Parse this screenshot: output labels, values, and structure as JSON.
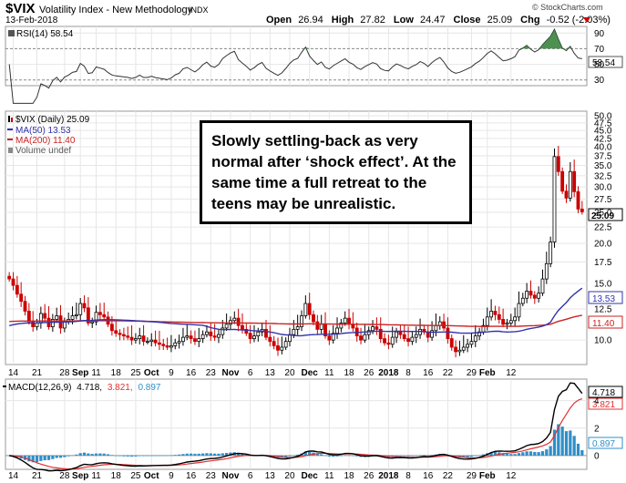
{
  "header": {
    "symbol": "$VIX",
    "name": "Volatility Index - New Methodology",
    "exchange": "INDX",
    "date": "13-Feb-2018",
    "brand": "© StockCharts.com",
    "open_label": "Open",
    "open": "26.94",
    "high_label": "High",
    "high": "27.82",
    "low_label": "Low",
    "low": "24.47",
    "close_label": "Close",
    "close": "25.09",
    "chg_label": "Chg",
    "chg": "-0.52 (-2.03%)"
  },
  "colors": {
    "up": "#000000",
    "down": "#cc0000",
    "ma50": "#3333aa",
    "ma200": "#cc2222",
    "macd": "#000000",
    "signal": "#e03030",
    "hist": "#2f8fc8",
    "rsi_fill": "#2e7d32"
  },
  "rsi_panel": {
    "legend": "RSI(14) 58.54",
    "value_box": "58.54",
    "ticks": [
      "90",
      "70",
      "50",
      "30"
    ]
  },
  "main_panel": {
    "legend_vix": "$VIX (Daily) 25.09",
    "legend_ma50": "MA(50) 13.53",
    "legend_ma200": "MA(200) 11.40",
    "legend_volume": "Volume undef",
    "ticks": [
      "50.0",
      "47.5",
      "45.0",
      "42.5",
      "40.0",
      "37.5",
      "35.0",
      "32.5",
      "30.0",
      "27.5",
      "25.0",
      "22.5",
      "20.0",
      "17.5",
      "15.0",
      "12.5",
      "10.0"
    ],
    "close_box": "25.09",
    "ma50_box": "13.53",
    "ma200_box": "11.40",
    "annotation": "Slowly settling-back as very normal after ‘shock effect’. At the same time a full retreat to the teens may be unrealistic."
  },
  "x_axis": {
    "labels": [
      "14",
      "21",
      "28",
      "Sep",
      "11",
      "18",
      "25",
      "Oct",
      "9",
      "16",
      "23",
      "Nov",
      "6",
      "13",
      "20",
      "Dec",
      "11",
      "18",
      "26",
      "2018",
      "8",
      "16",
      "22",
      "29",
      "Feb",
      "12"
    ]
  },
  "macd_panel": {
    "legend_prefix": "MACD(12,26,9)",
    "legend_macd": "4.718,",
    "legend_signal": "3.821,",
    "legend_hist": "0.897",
    "ticks": [
      "4",
      "2",
      "0"
    ],
    "macd_box": "4.718",
    "signal_box": "3.821",
    "hist_box": "0.897"
  },
  "chart_data": {
    "type": "line",
    "title": "$VIX Volatility Index - New Methodology INDX",
    "y_scale": "log",
    "ylim": [
      8.5,
      50
    ],
    "closes": [
      15.5,
      14.8,
      13.9,
      13.2,
      12.3,
      11.4,
      11.0,
      11.3,
      12.1,
      11.7,
      11.0,
      11.6,
      11.9,
      10.9,
      11.4,
      11.6,
      11.9,
      12.0,
      13.0,
      12.6,
      11.3,
      11.4,
      12.2,
      12.0,
      11.8,
      11.2,
      10.7,
      10.5,
      10.4,
      10.3,
      10.2,
      10.0,
      10.1,
      10.3,
      9.9,
      9.9,
      10.0,
      9.8,
      9.7,
      9.6,
      9.5,
      9.6,
      9.8,
      9.9,
      10.2,
      10.3,
      10.1,
      9.9,
      10.1,
      10.4,
      10.6,
      10.3,
      10.2,
      10.4,
      10.9,
      11.2,
      11.5,
      11.7,
      11.1,
      10.8,
      10.5,
      10.1,
      10.3,
      10.6,
      10.8,
      10.2,
      9.9,
      9.6,
      9.3,
      9.5,
      9.9,
      10.4,
      10.8,
      11.0,
      11.9,
      13.0,
      12.0,
      11.4,
      10.8,
      11.2,
      10.3,
      10.0,
      10.5,
      10.9,
      11.3,
      11.7,
      11.2,
      10.9,
      10.3,
      10.0,
      10.4,
      10.7,
      11.0,
      10.8,
      10.1,
      9.8,
      9.7,
      10.2,
      10.6,
      10.4,
      10.1,
      9.9,
      10.2,
      10.4,
      10.8,
      10.6,
      10.2,
      10.7,
      11.1,
      11.4,
      10.9,
      10.1,
      9.5,
      9.2,
      9.3,
      9.5,
      9.7,
      9.9,
      10.3,
      10.6,
      11.1,
      11.8,
      12.3,
      12.0,
      11.6,
      11.2,
      11.3,
      11.5,
      11.8,
      13.0,
      13.5,
      14.2,
      13.8,
      13.5,
      14.0,
      15.5,
      17.3,
      20.2,
      37.3,
      33.5,
      29.1,
      27.7,
      33.5,
      29.0,
      25.6,
      25.1
    ]
  }
}
